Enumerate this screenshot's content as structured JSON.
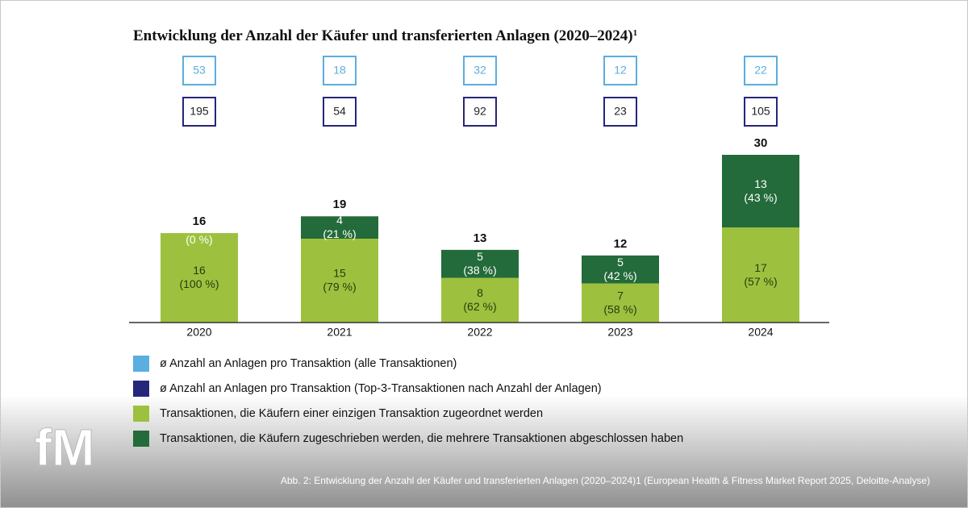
{
  "chart_data": {
    "type": "bar",
    "stacked": true,
    "title": "Entwicklung der Anzahl der Käufer und transferierten Anlagen (2020–2024)",
    "title_footnote": "1",
    "categories": [
      "2020",
      "2021",
      "2022",
      "2023",
      "2024"
    ],
    "ylim": [
      0,
      30
    ],
    "totals": [
      16,
      19,
      13,
      12,
      30
    ],
    "box_series": [
      {
        "name": "ø Anzahl an Anlagen pro Transaktion (alle Transaktionen)",
        "color": "#5aaee0",
        "values": [
          53,
          18,
          32,
          12,
          22
        ]
      },
      {
        "name": "ø Anzahl an Anlagen pro Transaktion (Top-3-Transaktionen nach Anzahl der Anlagen)",
        "color": "#26267a",
        "values": [
          195,
          54,
          92,
          23,
          105
        ]
      }
    ],
    "series": [
      {
        "name": "Transaktionen, die Käufern einer einzigen Transaktion zugeordnet werden",
        "color": "#9dc13e",
        "values": [
          16,
          15,
          8,
          7,
          17
        ],
        "shares": [
          100,
          79,
          62,
          58,
          57
        ],
        "share_labels": [
          "(100 %)",
          "(79 %)",
          "(62 %)",
          "(58 %)",
          "(57 %)"
        ]
      },
      {
        "name": "Transaktionen, die Käufern zugeschrieben werden, die mehrere Transaktionen abgeschlossen haben",
        "color": "#236b3a",
        "values": [
          0,
          4,
          5,
          5,
          13
        ],
        "shares": [
          0,
          21,
          38,
          42,
          43
        ],
        "share_labels": [
          "(0 %)",
          "(21 %)",
          "(38 %)",
          "(42 %)",
          "(43 %)"
        ]
      }
    ]
  },
  "caption": "Abb. 2: Entwicklung der Anzahl der Käufer und transferierten Anlagen (2020–2024)1 (European Health & Fitness Market Report 2025, Deloitte-Analyse)",
  "logo": "fM"
}
